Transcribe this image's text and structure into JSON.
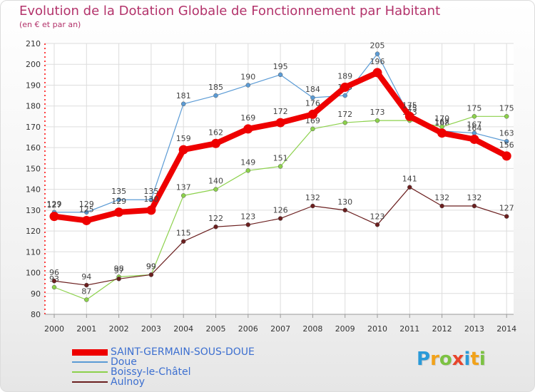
{
  "title": "Evolution de la Dotation Globale de Fonctionnement par Habitant",
  "subtitle": "(en € et par an)",
  "chart_data": {
    "type": "line",
    "title": "Evolution de la Dotation Globale de Fonctionnement par Habitant",
    "subtitle": "(en € et par an)",
    "xlabel": "",
    "ylabel": "",
    "x": [
      "2000",
      "2001",
      "2002",
      "2003",
      "2004",
      "2005",
      "2006",
      "2007",
      "2008",
      "2009",
      "2010",
      "2011",
      "2012",
      "2013",
      "2014"
    ],
    "ylim": [
      80,
      210
    ],
    "yticks": [
      80,
      90,
      100,
      110,
      120,
      130,
      140,
      150,
      160,
      170,
      180,
      190,
      200,
      210
    ],
    "grid": true,
    "legend_position": "bottom-left",
    "series": [
      {
        "name": "SAINT-GERMAIN-SOUS-DOUE",
        "color": "#ee0000",
        "values": [
          127,
          125,
          129,
          130,
          159,
          162,
          169,
          172,
          176,
          189,
          196,
          175,
          167,
          164,
          156
        ]
      },
      {
        "name": "Doue",
        "color": "#5b9bd5",
        "values": [
          129,
          129,
          135,
          135,
          181,
          185,
          190,
          195,
          184,
          185,
          205,
          175,
          168,
          167,
          163
        ]
      },
      {
        "name": "Boissy-le-Châtel",
        "color": "#8cd14b",
        "values": [
          93,
          87,
          98,
          99,
          137,
          140,
          149,
          151,
          169,
          172,
          173,
          173,
          170,
          175,
          175
        ]
      },
      {
        "name": "Aulnoy",
        "color": "#6b1f1f",
        "values": [
          96,
          94,
          97,
          99,
          115,
          122,
          123,
          126,
          132,
          130,
          123,
          141,
          132,
          132,
          127
        ]
      }
    ]
  },
  "logo": {
    "letters": [
      "P",
      "r",
      "o",
      "x",
      "i",
      "t",
      "i"
    ],
    "colors": [
      "#2a9ad8",
      "#f2a21a",
      "#7cc242",
      "#e8452c",
      "#2a9ad8",
      "#f2a21a",
      "#7cc242"
    ]
  }
}
